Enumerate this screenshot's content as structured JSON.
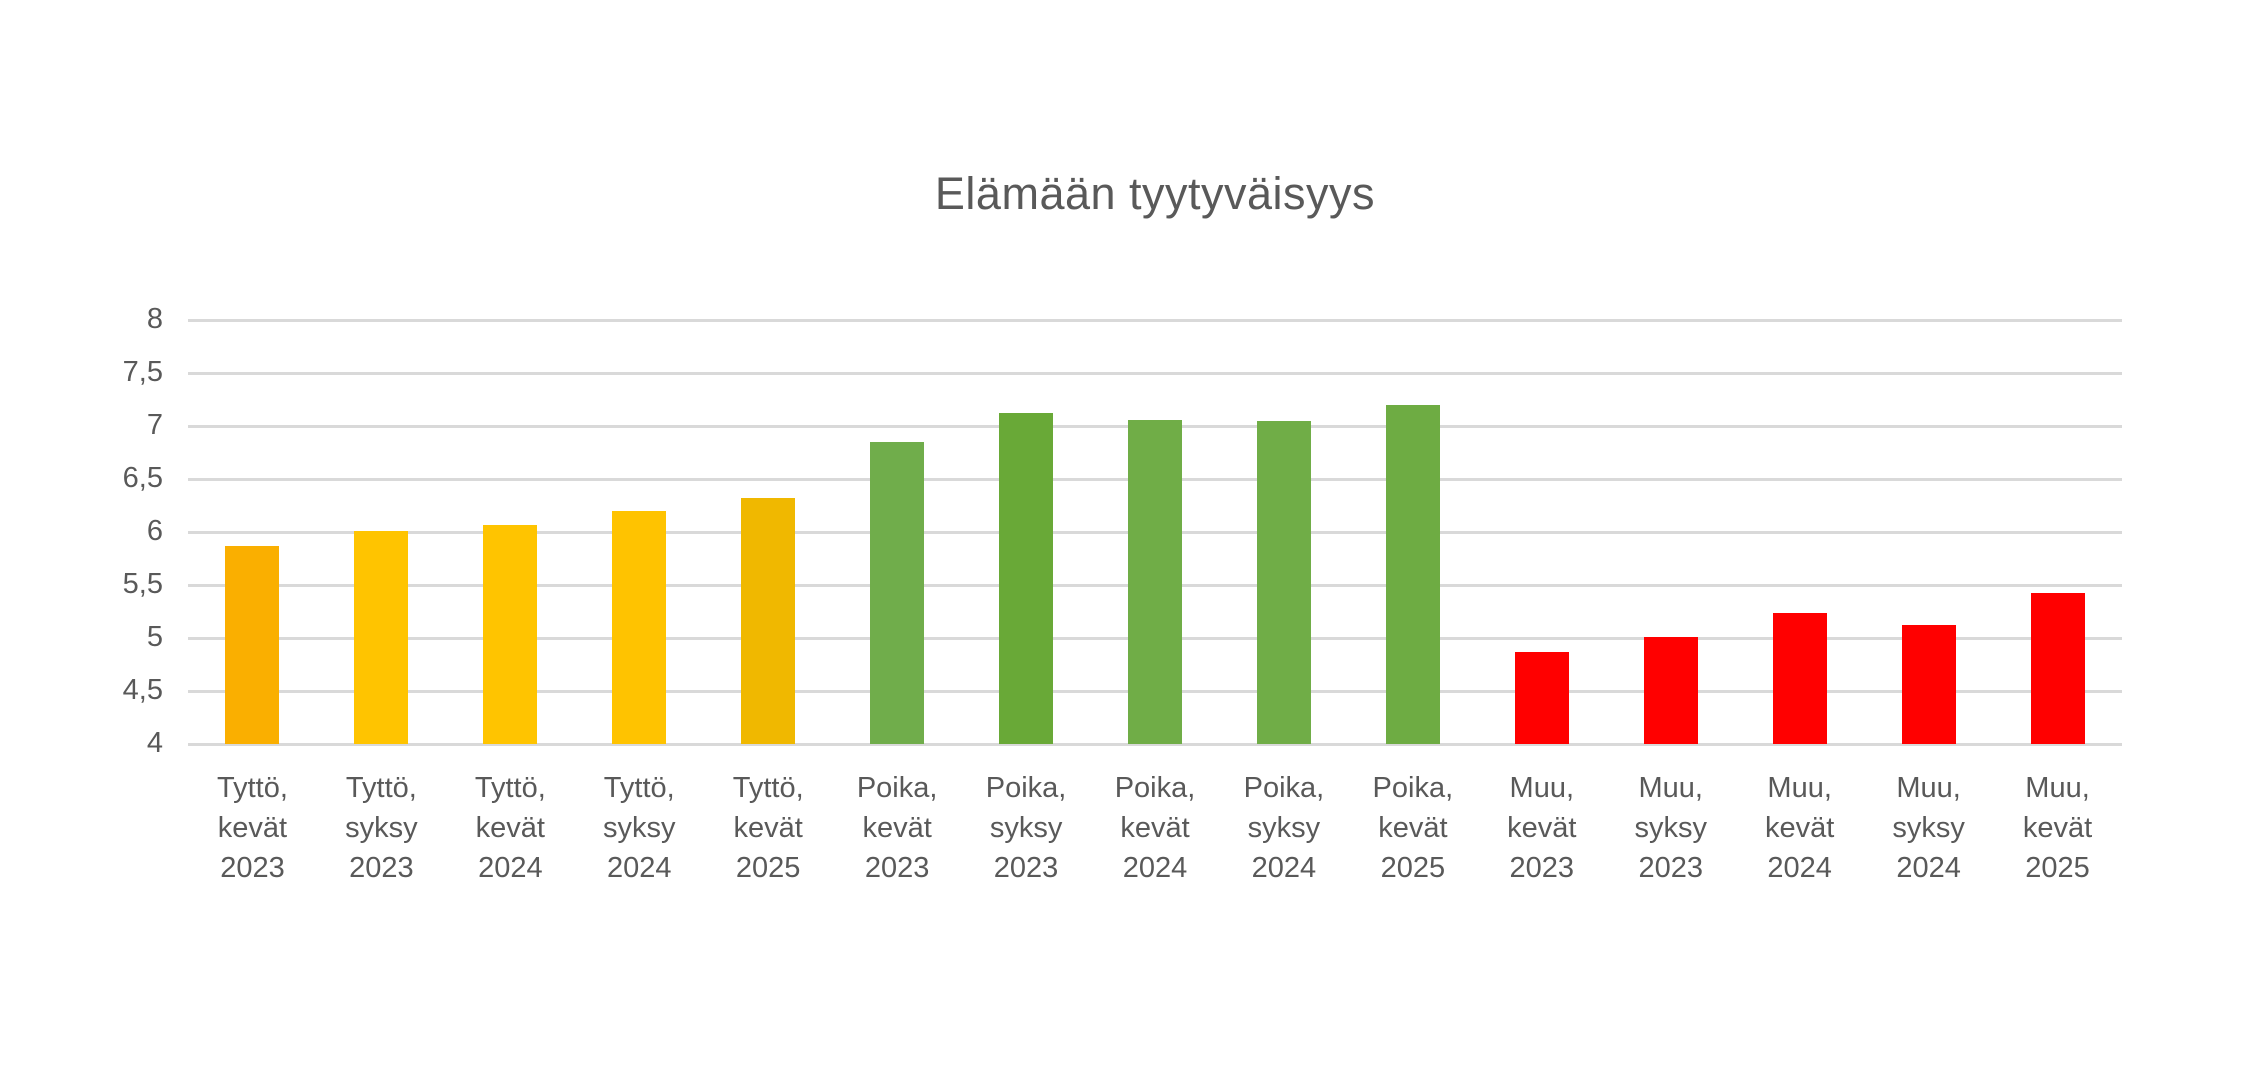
{
  "chart_data": {
    "type": "bar",
    "title": "Elämään tyytyväisyys",
    "xlabel": "",
    "ylabel": "",
    "legend": "none",
    "grid": "horizontal",
    "gridline_color": "#d9d9d9",
    "text_color": "#595959",
    "background_color": "#ffffff",
    "y_axis": {
      "min": 4,
      "max": 8,
      "step": 0.5,
      "tick_labels": [
        "4",
        "4,5",
        "5",
        "5,5",
        "6",
        "6,5",
        "7",
        "7,5",
        "8"
      ]
    },
    "groups": [
      {
        "name": "Tyttö",
        "color": "#FFC000"
      },
      {
        "name": "Poika",
        "color": "#70AD47"
      },
      {
        "name": "Muu",
        "color": "#FF0000"
      }
    ],
    "bars": [
      {
        "category": "Tyttö, kevät 2023",
        "label_lines": [
          "Tyttö,",
          "kevät",
          "2023"
        ],
        "value": 5.87,
        "color": "#FAAF00"
      },
      {
        "category": "Tyttö, syksy 2023",
        "label_lines": [
          "Tyttö,",
          "syksy",
          "2023"
        ],
        "value": 6.01,
        "color": "#FFC400"
      },
      {
        "category": "Tyttö, kevät 2024",
        "label_lines": [
          "Tyttö,",
          "kevät",
          "2024"
        ],
        "value": 6.07,
        "color": "#FFC400"
      },
      {
        "category": "Tyttö, syksy 2024",
        "label_lines": [
          "Tyttö,",
          "syksy",
          "2024"
        ],
        "value": 6.2,
        "color": "#FFC300"
      },
      {
        "category": "Tyttö, kevät 2025",
        "label_lines": [
          "Tyttö,",
          "kevät",
          "2025"
        ],
        "value": 6.32,
        "color": "#F0B800"
      },
      {
        "category": "Poika, kevät 2023",
        "label_lines": [
          "Poika,",
          "kevät",
          "2023"
        ],
        "value": 6.85,
        "color": "#70AD4B"
      },
      {
        "category": "Poika, syksy 2023",
        "label_lines": [
          "Poika,",
          "syksy",
          "2023"
        ],
        "value": 7.12,
        "color": "#69A937"
      },
      {
        "category": "Poika, kevät 2024",
        "label_lines": [
          "Poika,",
          "kevät",
          "2024"
        ],
        "value": 7.06,
        "color": "#70AD47"
      },
      {
        "category": "Poika, syksy 2024",
        "label_lines": [
          "Poika,",
          "syksy",
          "2024"
        ],
        "value": 7.05,
        "color": "#70AD47"
      },
      {
        "category": "Poika, kevät 2025",
        "label_lines": [
          "Poika,",
          "kevät",
          "2025"
        ],
        "value": 7.2,
        "color": "#6EAC43"
      },
      {
        "category": "Muu, kevät 2023",
        "label_lines": [
          "Muu,",
          "kevät",
          "2023"
        ],
        "value": 4.87,
        "color": "#FF0000"
      },
      {
        "category": "Muu, syksy 2023",
        "label_lines": [
          "Muu,",
          "syksy",
          "2023"
        ],
        "value": 5.01,
        "color": "#FF0000"
      },
      {
        "category": "Muu, kevät 2024",
        "label_lines": [
          "Muu,",
          "kevät",
          "2024"
        ],
        "value": 5.24,
        "color": "#FF0000"
      },
      {
        "category": "Muu, syksy 2024",
        "label_lines": [
          "Muu,",
          "syksy",
          "2024"
        ],
        "value": 5.12,
        "color": "#FF0000"
      },
      {
        "category": "Muu, kevät 2025",
        "label_lines": [
          "Muu,",
          "kevät",
          "2025"
        ],
        "value": 5.42,
        "color": "#FF0000"
      }
    ]
  }
}
